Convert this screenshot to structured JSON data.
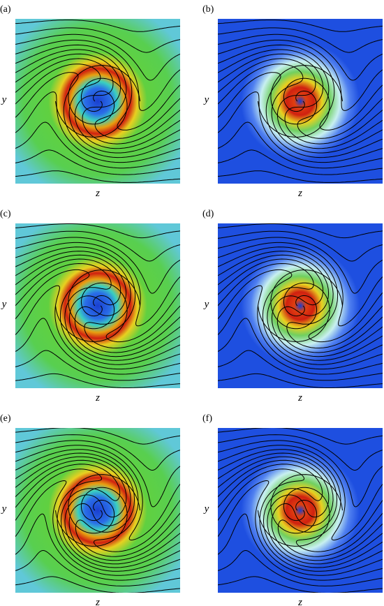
{
  "panels": [
    {
      "label": "(a)",
      "x_label": "z",
      "y_label": "y"
    },
    {
      "label": "(b)",
      "x_label": "z",
      "y_label": "y"
    },
    {
      "label": "(c)",
      "x_label": "z",
      "y_label": "y"
    },
    {
      "label": "(d)",
      "x_label": "z",
      "y_label": "y"
    },
    {
      "label": "(e)",
      "x_label": "z",
      "y_label": "y"
    },
    {
      "label": "(f)",
      "x_label": "z",
      "y_label": "y"
    }
  ]
}
